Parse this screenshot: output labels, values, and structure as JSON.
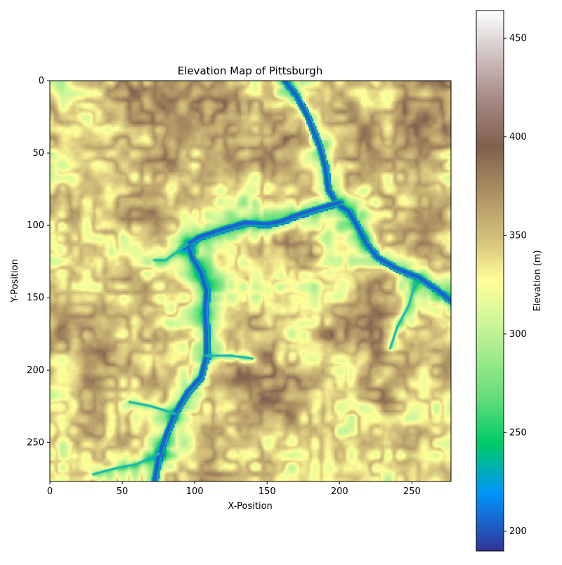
{
  "chart_data": {
    "type": "heatmap",
    "title": "Elevation Map of Pittsburgh",
    "xlabel": "X-Position",
    "ylabel": "Y-Position",
    "xlim": [
      0,
      277
    ],
    "ylim": [
      277,
      0
    ],
    "x_ticks": [
      0,
      50,
      100,
      150,
      200,
      250
    ],
    "y_ticks": [
      0,
      50,
      100,
      150,
      200,
      250
    ],
    "colorbar": {
      "label": "Elevation (m)",
      "range": [
        190,
        464
      ],
      "ticks": [
        200,
        250,
        300,
        350,
        400,
        450
      ],
      "colormap": "terrain",
      "stops": [
        {
          "value": 190,
          "color": "#333399"
        },
        {
          "value": 219,
          "color": "#0094fa"
        },
        {
          "value": 245,
          "color": "#00cc66"
        },
        {
          "value": 268,
          "color": "#66dd7a"
        },
        {
          "value": 305,
          "color": "#ccf599"
        },
        {
          "value": 327,
          "color": "#ffff99"
        },
        {
          "value": 345,
          "color": "#d9c87f"
        },
        {
          "value": 368,
          "color": "#b29866"
        },
        {
          "value": 395,
          "color": "#80604d"
        },
        {
          "value": 420,
          "color": "#a88b87"
        },
        {
          "value": 445,
          "color": "#d6cccb"
        },
        {
          "value": 464,
          "color": "#ffffff"
        }
      ]
    },
    "rivers": [
      {
        "name": "",
        "points": [
          [
            162,
            0
          ],
          [
            170,
            10
          ],
          [
            178,
            25
          ],
          [
            186,
            45
          ],
          [
            190,
            60
          ],
          [
            192,
            75
          ],
          [
            198,
            85
          ],
          [
            206,
            90
          ],
          [
            212,
            100
          ],
          [
            218,
            112
          ],
          [
            226,
            122
          ],
          [
            240,
            130
          ],
          [
            255,
            136
          ],
          [
            268,
            145
          ],
          [
            277,
            152
          ]
        ]
      },
      {
        "name": "",
        "points": [
          [
            200,
            84
          ],
          [
            186,
            88
          ],
          [
            170,
            93
          ],
          [
            160,
            97
          ],
          [
            150,
            99
          ],
          [
            135,
            98
          ],
          [
            118,
            103
          ],
          [
            103,
            108
          ],
          [
            95,
            113
          ],
          [
            98,
            122
          ],
          [
            104,
            132
          ],
          [
            108,
            145
          ],
          [
            107,
            160
          ],
          [
            108,
            175
          ],
          [
            108,
            190
          ],
          [
            104,
            205
          ],
          [
            95,
            215
          ],
          [
            86,
            230
          ],
          [
            80,
            245
          ],
          [
            75,
            260
          ],
          [
            72,
            277
          ]
        ]
      },
      {
        "name": "",
        "points": [
          [
            108,
            190
          ],
          [
            125,
            190
          ],
          [
            140,
            192
          ]
        ]
      },
      {
        "name": "",
        "points": [
          [
            95,
            113
          ],
          [
            88,
            118
          ],
          [
            80,
            124
          ],
          [
            72,
            124
          ]
        ]
      },
      {
        "name": "",
        "points": [
          [
            86,
            230
          ],
          [
            70,
            225
          ],
          [
            55,
            222
          ]
        ]
      },
      {
        "name": "",
        "points": [
          [
            75,
            258
          ],
          [
            60,
            265
          ],
          [
            45,
            268
          ],
          [
            30,
            272
          ]
        ]
      },
      {
        "name": "",
        "points": [
          [
            252,
            140
          ],
          [
            248,
            155
          ],
          [
            240,
            170
          ],
          [
            235,
            185
          ]
        ]
      }
    ]
  }
}
